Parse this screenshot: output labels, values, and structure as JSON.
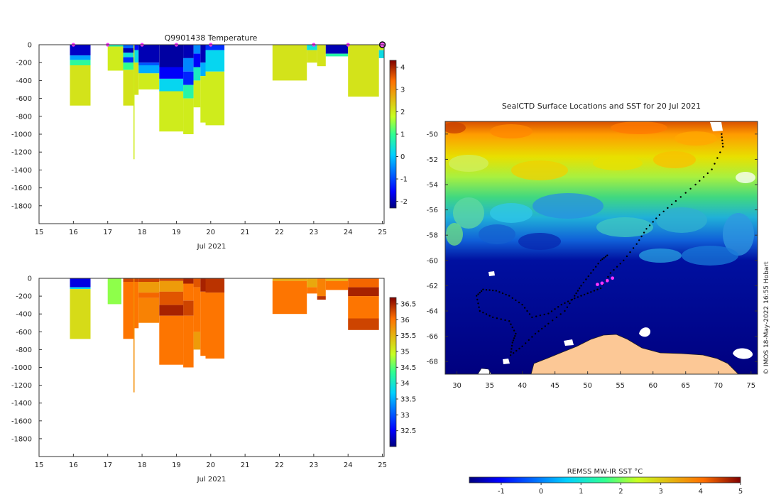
{
  "chart_data": [
    {
      "type": "heatmap",
      "title": "Q9901438  Temperature",
      "xlabel": "Jul 2021",
      "ylabel": "",
      "xlim": [
        15,
        25.05
      ],
      "ylim": [
        -2000,
        0
      ],
      "x_ticks": [
        "15",
        "16",
        "17",
        "18",
        "19",
        "20",
        "21",
        "22",
        "23",
        "24",
        "25"
      ],
      "y_ticks": [
        "0",
        "-200",
        "-400",
        "-600",
        "-800",
        "-1000",
        "-1200",
        "-1400",
        "-1600",
        "-1800"
      ],
      "colorbar": {
        "min": -2.3,
        "max": 4.3,
        "ticks": [
          "-2",
          "-1",
          "0",
          "1",
          "2",
          "3",
          "4"
        ]
      },
      "profile_markers_x": [
        16.0,
        17.0,
        18.0,
        19.0,
        20.0,
        23.0,
        24.0,
        25.0
      ],
      "profiles": [
        {
          "x0": 15.9,
          "x1": 16.5,
          "depth": 680,
          "layers": [
            [
              0,
              120,
              -1.9
            ],
            [
              120,
              170,
              -0.3
            ],
            [
              170,
              230,
              0.9
            ],
            [
              230,
              680,
              2.1
            ]
          ]
        },
        {
          "x0": 17.0,
          "x1": 17.45,
          "depth": 290,
          "layers": [
            [
              0,
              20,
              0.7
            ],
            [
              20,
              290,
              2.0
            ]
          ]
        },
        {
          "x0": 17.45,
          "x1": 17.75,
          "depth": 680,
          "layers": [
            [
              0,
              40,
              -0.8
            ],
            [
              40,
              90,
              -2.0
            ],
            [
              90,
              140,
              0.4
            ],
            [
              140,
              200,
              -1.2
            ],
            [
              200,
              280,
              1.0
            ],
            [
              280,
              680,
              2.1
            ]
          ]
        },
        {
          "x0": 17.75,
          "x1": 17.78,
          "depth": 1280,
          "layers": [
            [
              0,
              1280,
              2.0
            ]
          ]
        },
        {
          "x0": 17.78,
          "x1": 17.9,
          "depth": 560,
          "layers": [
            [
              0,
              60,
              -1.5
            ],
            [
              60,
              200,
              0.3
            ],
            [
              200,
              560,
              2.1
            ]
          ]
        },
        {
          "x0": 17.9,
          "x1": 18.5,
          "depth": 500,
          "layers": [
            [
              0,
              200,
              -2.0
            ],
            [
              200,
              230,
              -0.9
            ],
            [
              230,
              320,
              -0.2
            ],
            [
              320,
              500,
              2.0
            ]
          ]
        },
        {
          "x0": 18.5,
          "x1": 19.2,
          "depth": 970,
          "layers": [
            [
              0,
              250,
              -2.1
            ],
            [
              250,
              380,
              -1.6
            ],
            [
              380,
              520,
              0.2
            ],
            [
              520,
              970,
              2.0
            ]
          ]
        },
        {
          "x0": 19.2,
          "x1": 19.5,
          "depth": 1000,
          "layers": [
            [
              0,
              150,
              -2.0
            ],
            [
              150,
              300,
              -0.5
            ],
            [
              300,
              450,
              -1.3
            ],
            [
              450,
              600,
              0.8
            ],
            [
              600,
              1000,
              2.0
            ]
          ]
        },
        {
          "x0": 19.5,
          "x1": 19.7,
          "depth": 700,
          "layers": [
            [
              0,
              100,
              -0.5
            ],
            [
              100,
              250,
              -1.6
            ],
            [
              250,
              400,
              0.6
            ],
            [
              400,
              700,
              2.0
            ]
          ]
        },
        {
          "x0": 19.7,
          "x1": 19.85,
          "depth": 870,
          "layers": [
            [
              0,
              200,
              -2.0
            ],
            [
              200,
              350,
              -0.2
            ],
            [
              350,
              870,
              2.0
            ]
          ]
        },
        {
          "x0": 19.85,
          "x1": 20.4,
          "depth": 900,
          "layers": [
            [
              0,
              60,
              -1.2
            ],
            [
              60,
              300,
              0.2
            ],
            [
              300,
              900,
              2.0
            ]
          ]
        },
        {
          "x0": 21.8,
          "x1": 22.8,
          "depth": 400,
          "layers": [
            [
              0,
              400,
              2.1
            ]
          ]
        },
        {
          "x0": 22.8,
          "x1": 23.1,
          "depth": 200,
          "layers": [
            [
              0,
              60,
              0.4
            ],
            [
              60,
              200,
              2.1
            ]
          ]
        },
        {
          "x0": 23.1,
          "x1": 23.35,
          "depth": 240,
          "layers": [
            [
              0,
              240,
              2.1
            ]
          ]
        },
        {
          "x0": 23.35,
          "x1": 24.0,
          "depth": 130,
          "layers": [
            [
              0,
              100,
              -2.0
            ],
            [
              100,
              130,
              0.8
            ]
          ]
        },
        {
          "x0": 24.0,
          "x1": 24.9,
          "depth": 580,
          "layers": [
            [
              0,
              580,
              2.1
            ]
          ]
        },
        {
          "x0": 24.9,
          "x1": 25.05,
          "depth": 150,
          "layers": [
            [
              0,
              60,
              2.0
            ],
            [
              60,
              150,
              0.3
            ]
          ]
        }
      ]
    },
    {
      "type": "heatmap",
      "title": "",
      "xlabel": "Jul 2021",
      "ylabel": "",
      "xlim": [
        15,
        25.05
      ],
      "ylim": [
        -2000,
        0
      ],
      "x_ticks": [
        "15",
        "16",
        "17",
        "18",
        "19",
        "20",
        "21",
        "22",
        "23",
        "24",
        "25"
      ],
      "y_ticks": [
        "0",
        "-200",
        "-400",
        "-600",
        "-800",
        "-1000",
        "-1200",
        "-1400",
        "-1600",
        "-1800"
      ],
      "colorbar": {
        "min": 32.0,
        "max": 36.7,
        "ticks": [
          "32.5",
          "33",
          "33.5",
          "34",
          "34.5",
          "35",
          "35.5",
          "36",
          "36.5"
        ]
      },
      "profiles": [
        {
          "x0": 15.9,
          "x1": 16.5,
          "depth": 680,
          "layers": [
            [
              0,
              100,
              32.4
            ],
            [
              100,
              120,
              33.8
            ],
            [
              120,
              680,
              35.2
            ]
          ]
        },
        {
          "x0": 17.0,
          "x1": 17.4,
          "depth": 290,
          "layers": [
            [
              0,
              290,
              34.7
            ]
          ]
        },
        {
          "x0": 17.45,
          "x1": 17.75,
          "depth": 680,
          "layers": [
            [
              0,
              40,
              36.3
            ],
            [
              40,
              680,
              36.0
            ]
          ]
        },
        {
          "x0": 17.75,
          "x1": 17.78,
          "depth": 1280,
          "layers": [
            [
              0,
              1280,
              35.8
            ]
          ]
        },
        {
          "x0": 17.78,
          "x1": 17.9,
          "depth": 560,
          "layers": [
            [
              0,
              40,
              36.3
            ],
            [
              40,
              560,
              36.0
            ]
          ]
        },
        {
          "x0": 17.9,
          "x1": 18.5,
          "depth": 500,
          "layers": [
            [
              0,
              40,
              36.3
            ],
            [
              40,
              160,
              35.7
            ],
            [
              160,
              220,
              36.1
            ],
            [
              220,
              500,
              35.9
            ]
          ]
        },
        {
          "x0": 18.5,
          "x1": 19.2,
          "depth": 970,
          "layers": [
            [
              0,
              30,
              36.3
            ],
            [
              30,
              150,
              35.7
            ],
            [
              150,
              300,
              36.2
            ],
            [
              300,
              420,
              36.5
            ],
            [
              420,
              970,
              36.0
            ]
          ]
        },
        {
          "x0": 19.2,
          "x1": 19.5,
          "depth": 1000,
          "layers": [
            [
              0,
              60,
              36.5
            ],
            [
              60,
              250,
              36.0
            ],
            [
              250,
              420,
              36.3
            ],
            [
              420,
              1000,
              36.0
            ]
          ]
        },
        {
          "x0": 19.5,
          "x1": 19.7,
          "depth": 800,
          "layers": [
            [
              0,
              100,
              36.2
            ],
            [
              100,
              600,
              36.0
            ],
            [
              600,
              800,
              35.7
            ]
          ]
        },
        {
          "x0": 19.7,
          "x1": 19.85,
          "depth": 870,
          "layers": [
            [
              0,
              150,
              36.5
            ],
            [
              150,
              870,
              36.0
            ]
          ]
        },
        {
          "x0": 19.85,
          "x1": 20.4,
          "depth": 900,
          "layers": [
            [
              0,
              160,
              36.4
            ],
            [
              160,
              900,
              36.0
            ]
          ]
        },
        {
          "x0": 21.8,
          "x1": 22.8,
          "depth": 400,
          "layers": [
            [
              0,
              30,
              35.6
            ],
            [
              30,
              400,
              36.0
            ]
          ]
        },
        {
          "x0": 22.8,
          "x1": 23.1,
          "depth": 170,
          "layers": [
            [
              0,
              100,
              35.6
            ],
            [
              100,
              170,
              36.0
            ]
          ]
        },
        {
          "x0": 23.1,
          "x1": 23.35,
          "depth": 240,
          "layers": [
            [
              0,
              200,
              35.9
            ],
            [
              200,
              240,
              36.4
            ]
          ]
        },
        {
          "x0": 23.35,
          "x1": 24.0,
          "depth": 130,
          "layers": [
            [
              0,
              30,
              35.5
            ],
            [
              30,
              130,
              36.0
            ]
          ]
        },
        {
          "x0": 24.0,
          "x1": 24.9,
          "depth": 580,
          "layers": [
            [
              0,
              100,
              36.1
            ],
            [
              100,
              200,
              36.5
            ],
            [
              200,
              450,
              36.0
            ],
            [
              450,
              580,
              36.3
            ]
          ]
        }
      ]
    },
    {
      "type": "heatmap",
      "title": "SealCTD Surface Locations and SST for 20 Jul 2021",
      "xlabel": "",
      "ylabel": "",
      "xlim": [
        28.2,
        76
      ],
      "ylim": [
        -69,
        -49
      ],
      "x_ticks": [
        "30",
        "35",
        "40",
        "45",
        "50",
        "55",
        "60",
        "65",
        "70",
        "75"
      ],
      "y_ticks": [
        "-50",
        "-52",
        "-54",
        "-56",
        "-58",
        "-60",
        "-62",
        "-64",
        "-66",
        "-68"
      ],
      "colorbar": {
        "label": "REMSS MW-IR SST °C",
        "min": -1.8,
        "max": 5.0,
        "ticks": [
          "-1",
          "0",
          "1",
          "2",
          "3",
          "4",
          "5"
        ]
      },
      "side_note": "© IMOS 18-May-2022 16:55 Hobart",
      "track": [
        [
          70.5,
          -50.0
        ],
        [
          70.7,
          -51.0
        ],
        [
          69.0,
          -52.8
        ],
        [
          66.5,
          -54.0
        ],
        [
          63.5,
          -55.3
        ],
        [
          61.0,
          -56.4
        ],
        [
          59.0,
          -57.5
        ],
        [
          57.5,
          -58.7
        ],
        [
          55.5,
          -60.0
        ],
        [
          53.5,
          -61.0
        ],
        [
          52.0,
          -62.2
        ],
        [
          50.0,
          -62.6
        ],
        [
          48.0,
          -63.0
        ],
        [
          46.0,
          -63.5
        ],
        [
          44.0,
          -64.2
        ],
        [
          41.5,
          -64.5
        ],
        [
          40.0,
          -63.5
        ],
        [
          38.0,
          -62.8
        ],
        [
          36.0,
          -62.4
        ],
        [
          34.0,
          -62.3
        ],
        [
          33.0,
          -62.8
        ],
        [
          33.5,
          -64.0
        ],
        [
          35.5,
          -64.5
        ],
        [
          38.0,
          -64.8
        ],
        [
          39.0,
          -65.8
        ],
        [
          38.5,
          -66.5
        ],
        [
          38.2,
          -67.5
        ],
        [
          40.0,
          -66.8
        ],
        [
          42.0,
          -65.8
        ],
        [
          44.0,
          -65.0
        ],
        [
          46.5,
          -64.0
        ],
        [
          48.0,
          -62.8
        ],
        [
          49.0,
          -62.0
        ],
        [
          50.5,
          -61.0
        ],
        [
          52.0,
          -60.0
        ],
        [
          53.0,
          -59.6
        ]
      ],
      "recent_positions": [
        [
          51.5,
          -61.9
        ],
        [
          52.2,
          -61.8
        ],
        [
          53.0,
          -61.6
        ],
        [
          53.8,
          -61.4
        ]
      ]
    }
  ]
}
